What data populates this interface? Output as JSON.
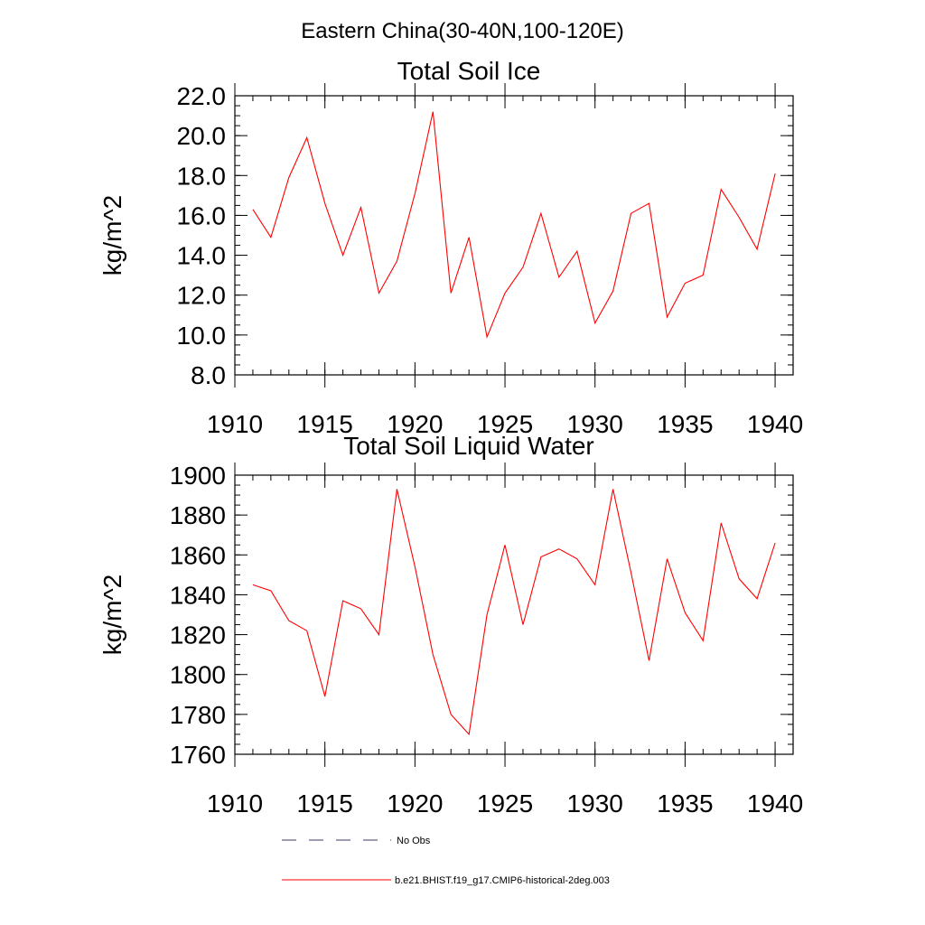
{
  "page_title": "Eastern China(30-40N,100-120E)",
  "colors": {
    "series": "#ff0000",
    "no_obs": "#3a3a6a",
    "axis": "#000000"
  },
  "legend": {
    "no_obs_label": "No Obs",
    "model_label": "b.e21.BHIST.f19_g17.CMIP6-historical-2deg.003"
  },
  "chart_data": [
    {
      "type": "line",
      "title": "Total Soil Ice",
      "xlabel": "",
      "ylabel": "kg/m^2",
      "xlim": [
        1910,
        1941
      ],
      "ylim": [
        8,
        22
      ],
      "xticks": [
        1910,
        1915,
        1920,
        1925,
        1930,
        1935,
        1940
      ],
      "yticks": [
        8,
        10,
        12,
        14,
        16,
        18,
        20,
        22
      ],
      "ytick_labels": [
        "8.0",
        "10.0",
        "12.0",
        "14.0",
        "16.0",
        "18.0",
        "20.0",
        "22.0"
      ],
      "y_minor_step": 0.5,
      "x": [
        1911,
        1912,
        1913,
        1914,
        1915,
        1916,
        1917,
        1918,
        1919,
        1920,
        1921,
        1922,
        1923,
        1924,
        1925,
        1926,
        1927,
        1928,
        1929,
        1930,
        1931,
        1932,
        1933,
        1934,
        1935,
        1936,
        1937,
        1938,
        1939,
        1940
      ],
      "series": [
        {
          "values": [
            16.3,
            14.9,
            17.9,
            19.9,
            16.6,
            14.0,
            16.4,
            12.1,
            13.7,
            17.1,
            21.2,
            12.1,
            14.9,
            9.9,
            12.1,
            13.4,
            16.1,
            12.9,
            14.2,
            10.6,
            12.2,
            16.1,
            16.6,
            10.9,
            12.6,
            13.0,
            17.3,
            15.9,
            14.3,
            18.1
          ]
        }
      ]
    },
    {
      "type": "line",
      "title": "Total Soil Liquid Water",
      "xlabel": "",
      "ylabel": "kg/m^2",
      "xlim": [
        1910,
        1941
      ],
      "ylim": [
        1760,
        1900
      ],
      "xticks": [
        1910,
        1915,
        1920,
        1925,
        1930,
        1935,
        1940
      ],
      "yticks": [
        1760,
        1780,
        1800,
        1820,
        1840,
        1860,
        1880,
        1900
      ],
      "ytick_labels": [
        "1760",
        "1780",
        "1800",
        "1820",
        "1840",
        "1860",
        "1880",
        "1900"
      ],
      "y_minor_step": 5,
      "x": [
        1911,
        1912,
        1913,
        1914,
        1915,
        1916,
        1917,
        1918,
        1919,
        1920,
        1921,
        1922,
        1923,
        1924,
        1925,
        1926,
        1927,
        1928,
        1929,
        1930,
        1931,
        1932,
        1933,
        1934,
        1935,
        1936,
        1937,
        1938,
        1939,
        1940
      ],
      "series": [
        {
          "values": [
            1845,
            1842,
            1827,
            1822,
            1789,
            1837,
            1833,
            1820,
            1893,
            1854,
            1810,
            1780,
            1770,
            1830,
            1865,
            1825,
            1859,
            1863,
            1858,
            1845,
            1893,
            1851,
            1807,
            1858,
            1831,
            1817,
            1876,
            1848,
            1838,
            1866
          ]
        }
      ]
    }
  ]
}
